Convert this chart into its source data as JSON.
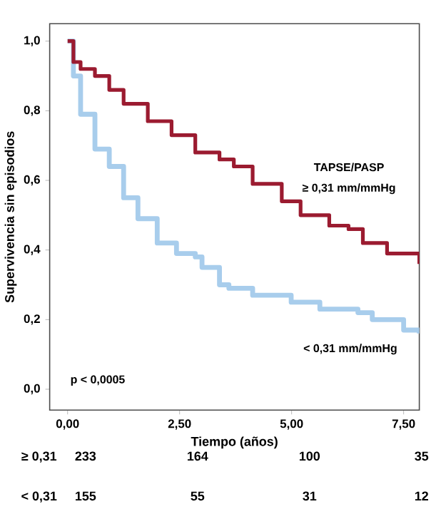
{
  "chart_data": {
    "type": "step",
    "xlabel": "Tiempo (años)",
    "ylabel": "Supervivencia sin episodios",
    "xlim": [
      -0.4,
      7.85
    ],
    "ylim": [
      -0.06,
      1.05
    ],
    "xticks": [
      {
        "value": 0,
        "label": "0,00"
      },
      {
        "value": 2.5,
        "label": "2,50"
      },
      {
        "value": 5,
        "label": "5,00"
      },
      {
        "value": 7.5,
        "label": "7,50"
      }
    ],
    "yticks": [
      {
        "value": 0,
        "label": "0,0"
      },
      {
        "value": 0.2,
        "label": "0,2"
      },
      {
        "value": 0.4,
        "label": "0,4"
      },
      {
        "value": 0.6,
        "label": "0,6"
      },
      {
        "value": 0.8,
        "label": "0,8"
      },
      {
        "value": 1.0,
        "label": "1,0"
      }
    ],
    "legend": false,
    "series": [
      {
        "name": "≥ 0,31 mm/mmHg",
        "color": "#9b1b30",
        "x": [
          0,
          0.13,
          0.29,
          0.61,
          0.93,
          1.25,
          1.79,
          2.32,
          2.85,
          3.39,
          3.71,
          4.13,
          4.78,
          5.2,
          5.84,
          6.27,
          6.59,
          7.13,
          7.85
        ],
        "values": [
          1.0,
          0.94,
          0.92,
          0.9,
          0.86,
          0.82,
          0.77,
          0.73,
          0.68,
          0.66,
          0.64,
          0.59,
          0.54,
          0.5,
          0.47,
          0.46,
          0.42,
          0.39,
          0.36
        ]
      },
      {
        "name": "< 0,31 mm/mmHg",
        "color": "#a8cdec",
        "x": [
          0,
          0.13,
          0.29,
          0.61,
          0.93,
          1.25,
          1.57,
          2.0,
          2.43,
          2.85,
          3.0,
          3.39,
          3.6,
          4.13,
          4.56,
          4.99,
          5.63,
          6.48,
          6.8,
          7.45,
          7.5,
          7.85
        ],
        "values": [
          1.0,
          0.9,
          0.79,
          0.69,
          0.64,
          0.55,
          0.49,
          0.42,
          0.39,
          0.38,
          0.35,
          0.3,
          0.29,
          0.27,
          0.27,
          0.25,
          0.23,
          0.22,
          0.2,
          0.2,
          0.17,
          0.16
        ]
      }
    ],
    "annotations": [
      "TAPSE/PASP",
      "p < 0,0005",
      "≥ 0,31",
      "233",
      "164",
      "100",
      "35",
      "< 0,31",
      "155",
      "55",
      "31",
      "12"
    ]
  }
}
